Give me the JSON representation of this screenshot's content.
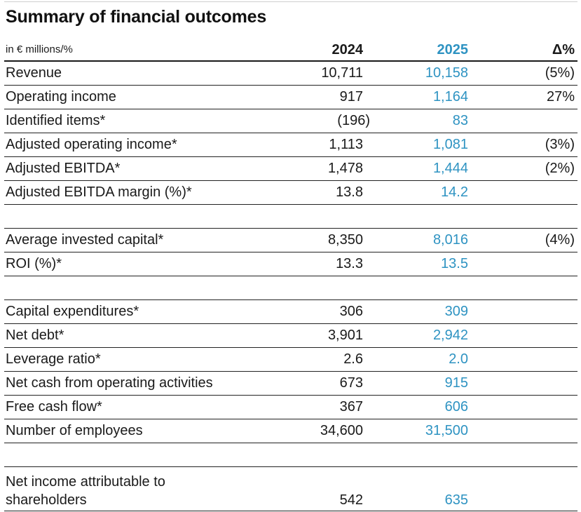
{
  "title": "Summary of financial outcomes",
  "header": {
    "unit_label": "in € millions/%",
    "col_2024": "2024",
    "col_2025": "2025",
    "col_delta": "Δ%"
  },
  "rows": [
    {
      "label": "Revenue",
      "v2024": "10,711",
      "v2025": "10,158",
      "delta": "(5%)"
    },
    {
      "label": "Operating income",
      "v2024": "917",
      "v2025": "1,164",
      "delta": "27%"
    },
    {
      "label": "Identified items*",
      "v2024": "(196)",
      "v2025": "83",
      "delta": ""
    },
    {
      "label": "Adjusted operating income*",
      "v2024": "1,113",
      "v2025": "1,081",
      "delta": "(3%)"
    },
    {
      "label": "Adjusted EBITDA*",
      "v2024": "1,478",
      "v2025": "1,444",
      "delta": "(2%)"
    },
    {
      "label": "Adjusted EBITDA margin (%)*",
      "v2024": "13.8",
      "v2025": "14.2",
      "delta": ""
    },
    {
      "label": "Average invested capital*",
      "v2024": "8,350",
      "v2025": "8,016",
      "delta": "(4%)"
    },
    {
      "label": "ROI (%)*",
      "v2024": "13.3",
      "v2025": "13.5",
      "delta": ""
    },
    {
      "label": "Capital expenditures*",
      "v2024": "306",
      "v2025": "309",
      "delta": ""
    },
    {
      "label": "Net debt*",
      "v2024": "3,901",
      "v2025": "2,942",
      "delta": ""
    },
    {
      "label": "Leverage ratio*",
      "v2024": "2.6",
      "v2025": "2.0",
      "delta": ""
    },
    {
      "label": "Net cash from operating activities",
      "v2024": "673",
      "v2025": "915",
      "delta": ""
    },
    {
      "label": "Free cash flow*",
      "v2024": "367",
      "v2025": "606",
      "delta": ""
    },
    {
      "label": "Number of employees",
      "v2024": "34,600",
      "v2025": "31,500",
      "delta": ""
    },
    {
      "label": "Net income attributable to shareholders",
      "v2024": "542",
      "v2025": "635",
      "delta": ""
    }
  ]
}
